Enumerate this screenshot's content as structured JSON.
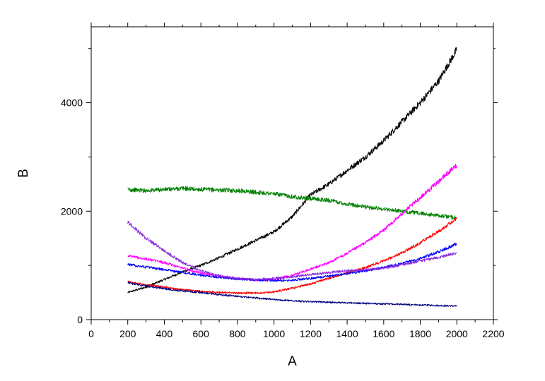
{
  "chart_data": {
    "type": "line",
    "title": "",
    "xlabel": "A",
    "ylabel": "B",
    "xlim": [
      0,
      2200
    ],
    "ylim": [
      0,
      5400
    ],
    "x_ticks": [
      0,
      200,
      400,
      600,
      800,
      1000,
      1200,
      1400,
      1600,
      1800,
      2000,
      2200
    ],
    "x_tick_labels": [
      "0",
      "200",
      "400",
      "600",
      "800",
      "1000",
      "1200",
      "1400",
      "1600",
      "1800",
      "2000",
      "2200"
    ],
    "y_ticks": [
      0,
      2000,
      4000
    ],
    "y_tick_labels": [
      "0",
      "2000",
      "4000"
    ],
    "grid": false,
    "legend": "none",
    "series": [
      {
        "color": "#000000",
        "x": [
          200,
          300,
          400,
          500,
          600,
          700,
          800,
          900,
          1000,
          1100,
          1200,
          1300,
          1400,
          1500,
          1600,
          1700,
          1800,
          1900,
          2000
        ],
        "y": [
          500,
          600,
          740,
          880,
          1000,
          1140,
          1300,
          1460,
          1620,
          1900,
          2300,
          2500,
          2750,
          3000,
          3300,
          3650,
          4000,
          4400,
          4980
        ]
      },
      {
        "color": "#008000",
        "x": [
          200,
          300,
          400,
          500,
          600,
          700,
          800,
          900,
          1000,
          1100,
          1200,
          1300,
          1400,
          1500,
          1600,
          1700,
          1800,
          1900,
          2000
        ],
        "y": [
          2400,
          2380,
          2400,
          2420,
          2400,
          2390,
          2380,
          2350,
          2320,
          2270,
          2230,
          2200,
          2130,
          2080,
          2040,
          2000,
          1960,
          1920,
          1880
        ]
      },
      {
        "color": "#ff00ff",
        "x": [
          200,
          300,
          400,
          500,
          600,
          700,
          800,
          900,
          1000,
          1100,
          1200,
          1300,
          1400,
          1500,
          1600,
          1700,
          1800,
          1900,
          2000
        ],
        "y": [
          1180,
          1120,
          1050,
          950,
          860,
          800,
          760,
          730,
          740,
          820,
          930,
          1050,
          1220,
          1420,
          1650,
          1950,
          2250,
          2550,
          2850
        ]
      },
      {
        "color": "#ff0000",
        "x": [
          200,
          300,
          400,
          500,
          600,
          700,
          800,
          900,
          1000,
          1100,
          1200,
          1300,
          1400,
          1500,
          1600,
          1700,
          1800,
          1900,
          2000
        ],
        "y": [
          700,
          640,
          600,
          550,
          520,
          500,
          490,
          490,
          510,
          580,
          660,
          760,
          860,
          960,
          1080,
          1230,
          1420,
          1630,
          1870
        ]
      },
      {
        "color": "#0000ff",
        "x": [
          200,
          300,
          400,
          500,
          600,
          700,
          800,
          900,
          1000,
          1100,
          1200,
          1300,
          1400,
          1500,
          1600,
          1700,
          1800,
          1900,
          2000
        ],
        "y": [
          1020,
          970,
          920,
          870,
          820,
          780,
          750,
          730,
          720,
          730,
          760,
          800,
          850,
          900,
          960,
          1040,
          1130,
          1250,
          1400
        ]
      },
      {
        "color": "#8a2be2",
        "x": [
          200,
          300,
          400,
          500,
          600,
          700,
          800,
          900,
          1000,
          1100,
          1200,
          1300,
          1400,
          1500,
          1600,
          1700,
          1800,
          1900,
          2000
        ],
        "y": [
          1800,
          1500,
          1270,
          1050,
          900,
          810,
          760,
          740,
          760,
          790,
          830,
          870,
          900,
          920,
          950,
          1010,
          1080,
          1150,
          1230
        ]
      },
      {
        "color": "#000080",
        "x": [
          200,
          300,
          400,
          500,
          600,
          700,
          800,
          900,
          1000,
          1100,
          1200,
          1300,
          1400,
          1500,
          1600,
          1700,
          1800,
          1900,
          2000
        ],
        "y": [
          680,
          620,
          570,
          530,
          500,
          460,
          430,
          400,
          370,
          350,
          330,
          320,
          310,
          300,
          290,
          280,
          270,
          260,
          250
        ]
      }
    ]
  }
}
